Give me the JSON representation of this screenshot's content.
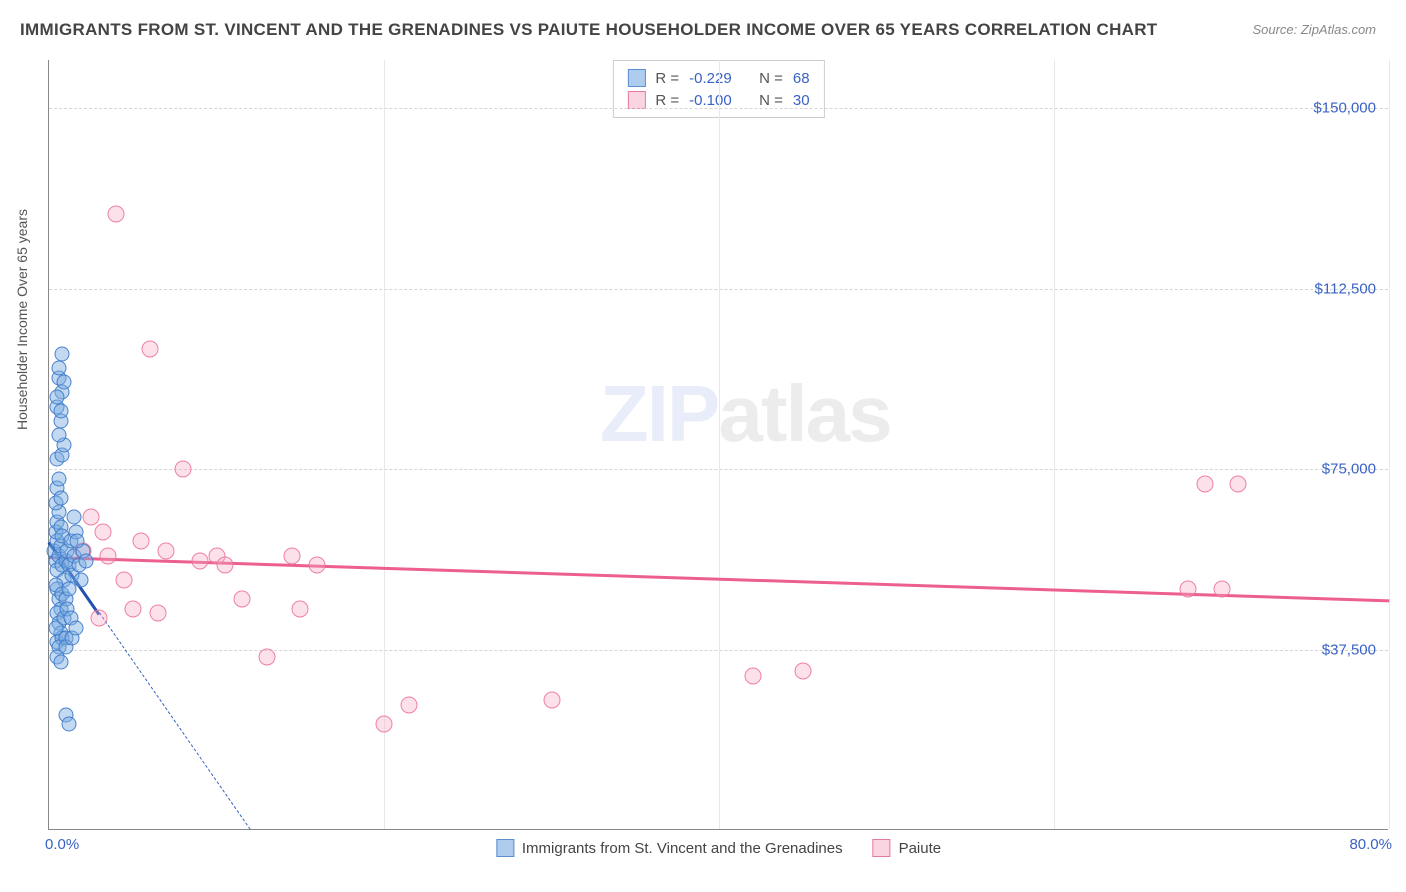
{
  "title": "IMMIGRANTS FROM ST. VINCENT AND THE GRENADINES VS PAIUTE HOUSEHOLDER INCOME OVER 65 YEARS CORRELATION CHART",
  "source": "Source: ZipAtlas.com",
  "watermark_a": "ZIP",
  "watermark_b": "atlas",
  "y_axis_label": "Householder Income Over 65 years",
  "chart": {
    "type": "scatter",
    "background_color": "#ffffff",
    "grid_color": "#d5d5d5",
    "x_min": 0.0,
    "x_max": 80.0,
    "x_min_label": "0.0%",
    "x_max_label": "80.0%",
    "y_min": 0,
    "y_max": 160000,
    "y_ticks": [
      {
        "value": 37500,
        "label": "$37,500"
      },
      {
        "value": 75000,
        "label": "$75,000"
      },
      {
        "value": 112500,
        "label": "$112,500"
      },
      {
        "value": 150000,
        "label": "$150,000"
      }
    ],
    "x_grid_positions_pct": [
      25,
      50,
      75,
      100
    ]
  },
  "legend_top": [
    {
      "color_fill": "rgba(120,170,225,0.6)",
      "color_border": "#5a8fd0",
      "r_label": "R =",
      "r_value": "-0.229",
      "n_label": "N =",
      "n_value": "68"
    },
    {
      "color_fill": "rgba(245,170,195,0.5)",
      "color_border": "#e57aa0",
      "r_label": "R =",
      "r_value": "-0.100",
      "n_label": "N =",
      "n_value": "30"
    }
  ],
  "legend_bottom": [
    {
      "color_fill": "rgba(120,170,225,0.6)",
      "color_border": "#5a8fd0",
      "label": "Immigrants from St. Vincent and the Grenadines"
    },
    {
      "color_fill": "rgba(245,170,195,0.5)",
      "color_border": "#e57aa0",
      "label": "Paiute"
    }
  ],
  "series_blue": {
    "color": "#5a8fd0",
    "points": [
      [
        0.3,
        58000
      ],
      [
        0.4,
        56000
      ],
      [
        0.5,
        60000
      ],
      [
        0.6,
        57000
      ],
      [
        0.5,
        54000
      ],
      [
        0.7,
        59000
      ],
      [
        0.4,
        62000
      ],
      [
        0.8,
        55000
      ],
      [
        0.5,
        64000
      ],
      [
        0.6,
        66000
      ],
      [
        0.7,
        63000
      ],
      [
        0.4,
        68000
      ],
      [
        0.9,
        52000
      ],
      [
        0.5,
        71000
      ],
      [
        0.6,
        73000
      ],
      [
        0.5,
        77000
      ],
      [
        0.7,
        69000
      ],
      [
        0.8,
        61000
      ],
      [
        0.5,
        50000
      ],
      [
        0.6,
        48000
      ],
      [
        0.7,
        46000
      ],
      [
        0.4,
        51000
      ],
      [
        0.8,
        49000
      ],
      [
        0.5,
        45000
      ],
      [
        0.6,
        43000
      ],
      [
        0.7,
        41000
      ],
      [
        0.5,
        39000
      ],
      [
        0.8,
        40000
      ],
      [
        0.4,
        42000
      ],
      [
        0.9,
        44000
      ],
      [
        0.6,
        38000
      ],
      [
        0.5,
        36000
      ],
      [
        0.7,
        35000
      ],
      [
        1.0,
        56000
      ],
      [
        1.1,
        58000
      ],
      [
        1.2,
        55000
      ],
      [
        1.3,
        60000
      ],
      [
        1.4,
        53000
      ],
      [
        1.5,
        57000
      ],
      [
        1.6,
        62000
      ],
      [
        1.0,
        48000
      ],
      [
        1.1,
        46000
      ],
      [
        1.2,
        50000
      ],
      [
        1.3,
        44000
      ],
      [
        1.0,
        40000
      ],
      [
        1.0,
        38000
      ],
      [
        0.8,
        78000
      ],
      [
        0.9,
        80000
      ],
      [
        0.6,
        82000
      ],
      [
        0.7,
        85000
      ],
      [
        0.5,
        88000
      ],
      [
        0.8,
        91000
      ],
      [
        0.6,
        94000
      ],
      [
        0.5,
        90000
      ],
      [
        0.7,
        87000
      ],
      [
        0.9,
        93000
      ],
      [
        0.6,
        96000
      ],
      [
        0.8,
        99000
      ],
      [
        1.8,
        55000
      ],
      [
        2.0,
        58000
      ],
      [
        2.2,
        56000
      ],
      [
        1.4,
        40000
      ],
      [
        1.6,
        42000
      ],
      [
        1.0,
        24000
      ],
      [
        1.2,
        22000
      ],
      [
        1.5,
        65000
      ],
      [
        1.7,
        60000
      ],
      [
        1.9,
        52000
      ]
    ],
    "trend": {
      "x1": 0,
      "y1": 60000,
      "x2": 3,
      "y2": 45000,
      "color": "#2050b0"
    },
    "extrapolation": {
      "x1": 3,
      "y1": 45000,
      "x2": 12,
      "y2": 0,
      "color": "#3962c4"
    }
  },
  "series_pink": {
    "color": "#e57aa0",
    "points": [
      [
        2.5,
        65000
      ],
      [
        3.0,
        44000
      ],
      [
        3.5,
        57000
      ],
      [
        4.0,
        128000
      ],
      [
        5.0,
        46000
      ],
      [
        5.5,
        60000
      ],
      [
        6.0,
        100000
      ],
      [
        6.5,
        45000
      ],
      [
        8.0,
        75000
      ],
      [
        9.0,
        56000
      ],
      [
        10.0,
        57000
      ],
      [
        10.5,
        55000
      ],
      [
        11.5,
        48000
      ],
      [
        13.0,
        36000
      ],
      [
        14.5,
        57000
      ],
      [
        15.0,
        46000
      ],
      [
        16.0,
        55000
      ],
      [
        20.0,
        22000
      ],
      [
        21.5,
        26000
      ],
      [
        30.0,
        27000
      ],
      [
        42.0,
        32000
      ],
      [
        45.0,
        33000
      ],
      [
        69.0,
        72000
      ],
      [
        71.0,
        72000
      ],
      [
        68.0,
        50000
      ],
      [
        70.0,
        50000
      ],
      [
        2.0,
        58000
      ],
      [
        3.2,
        62000
      ],
      [
        4.5,
        52000
      ],
      [
        7.0,
        58000
      ]
    ],
    "trend": {
      "x1": 0,
      "y1": 57000,
      "x2": 80,
      "y2": 48000,
      "color": "#ec5f8e"
    }
  }
}
